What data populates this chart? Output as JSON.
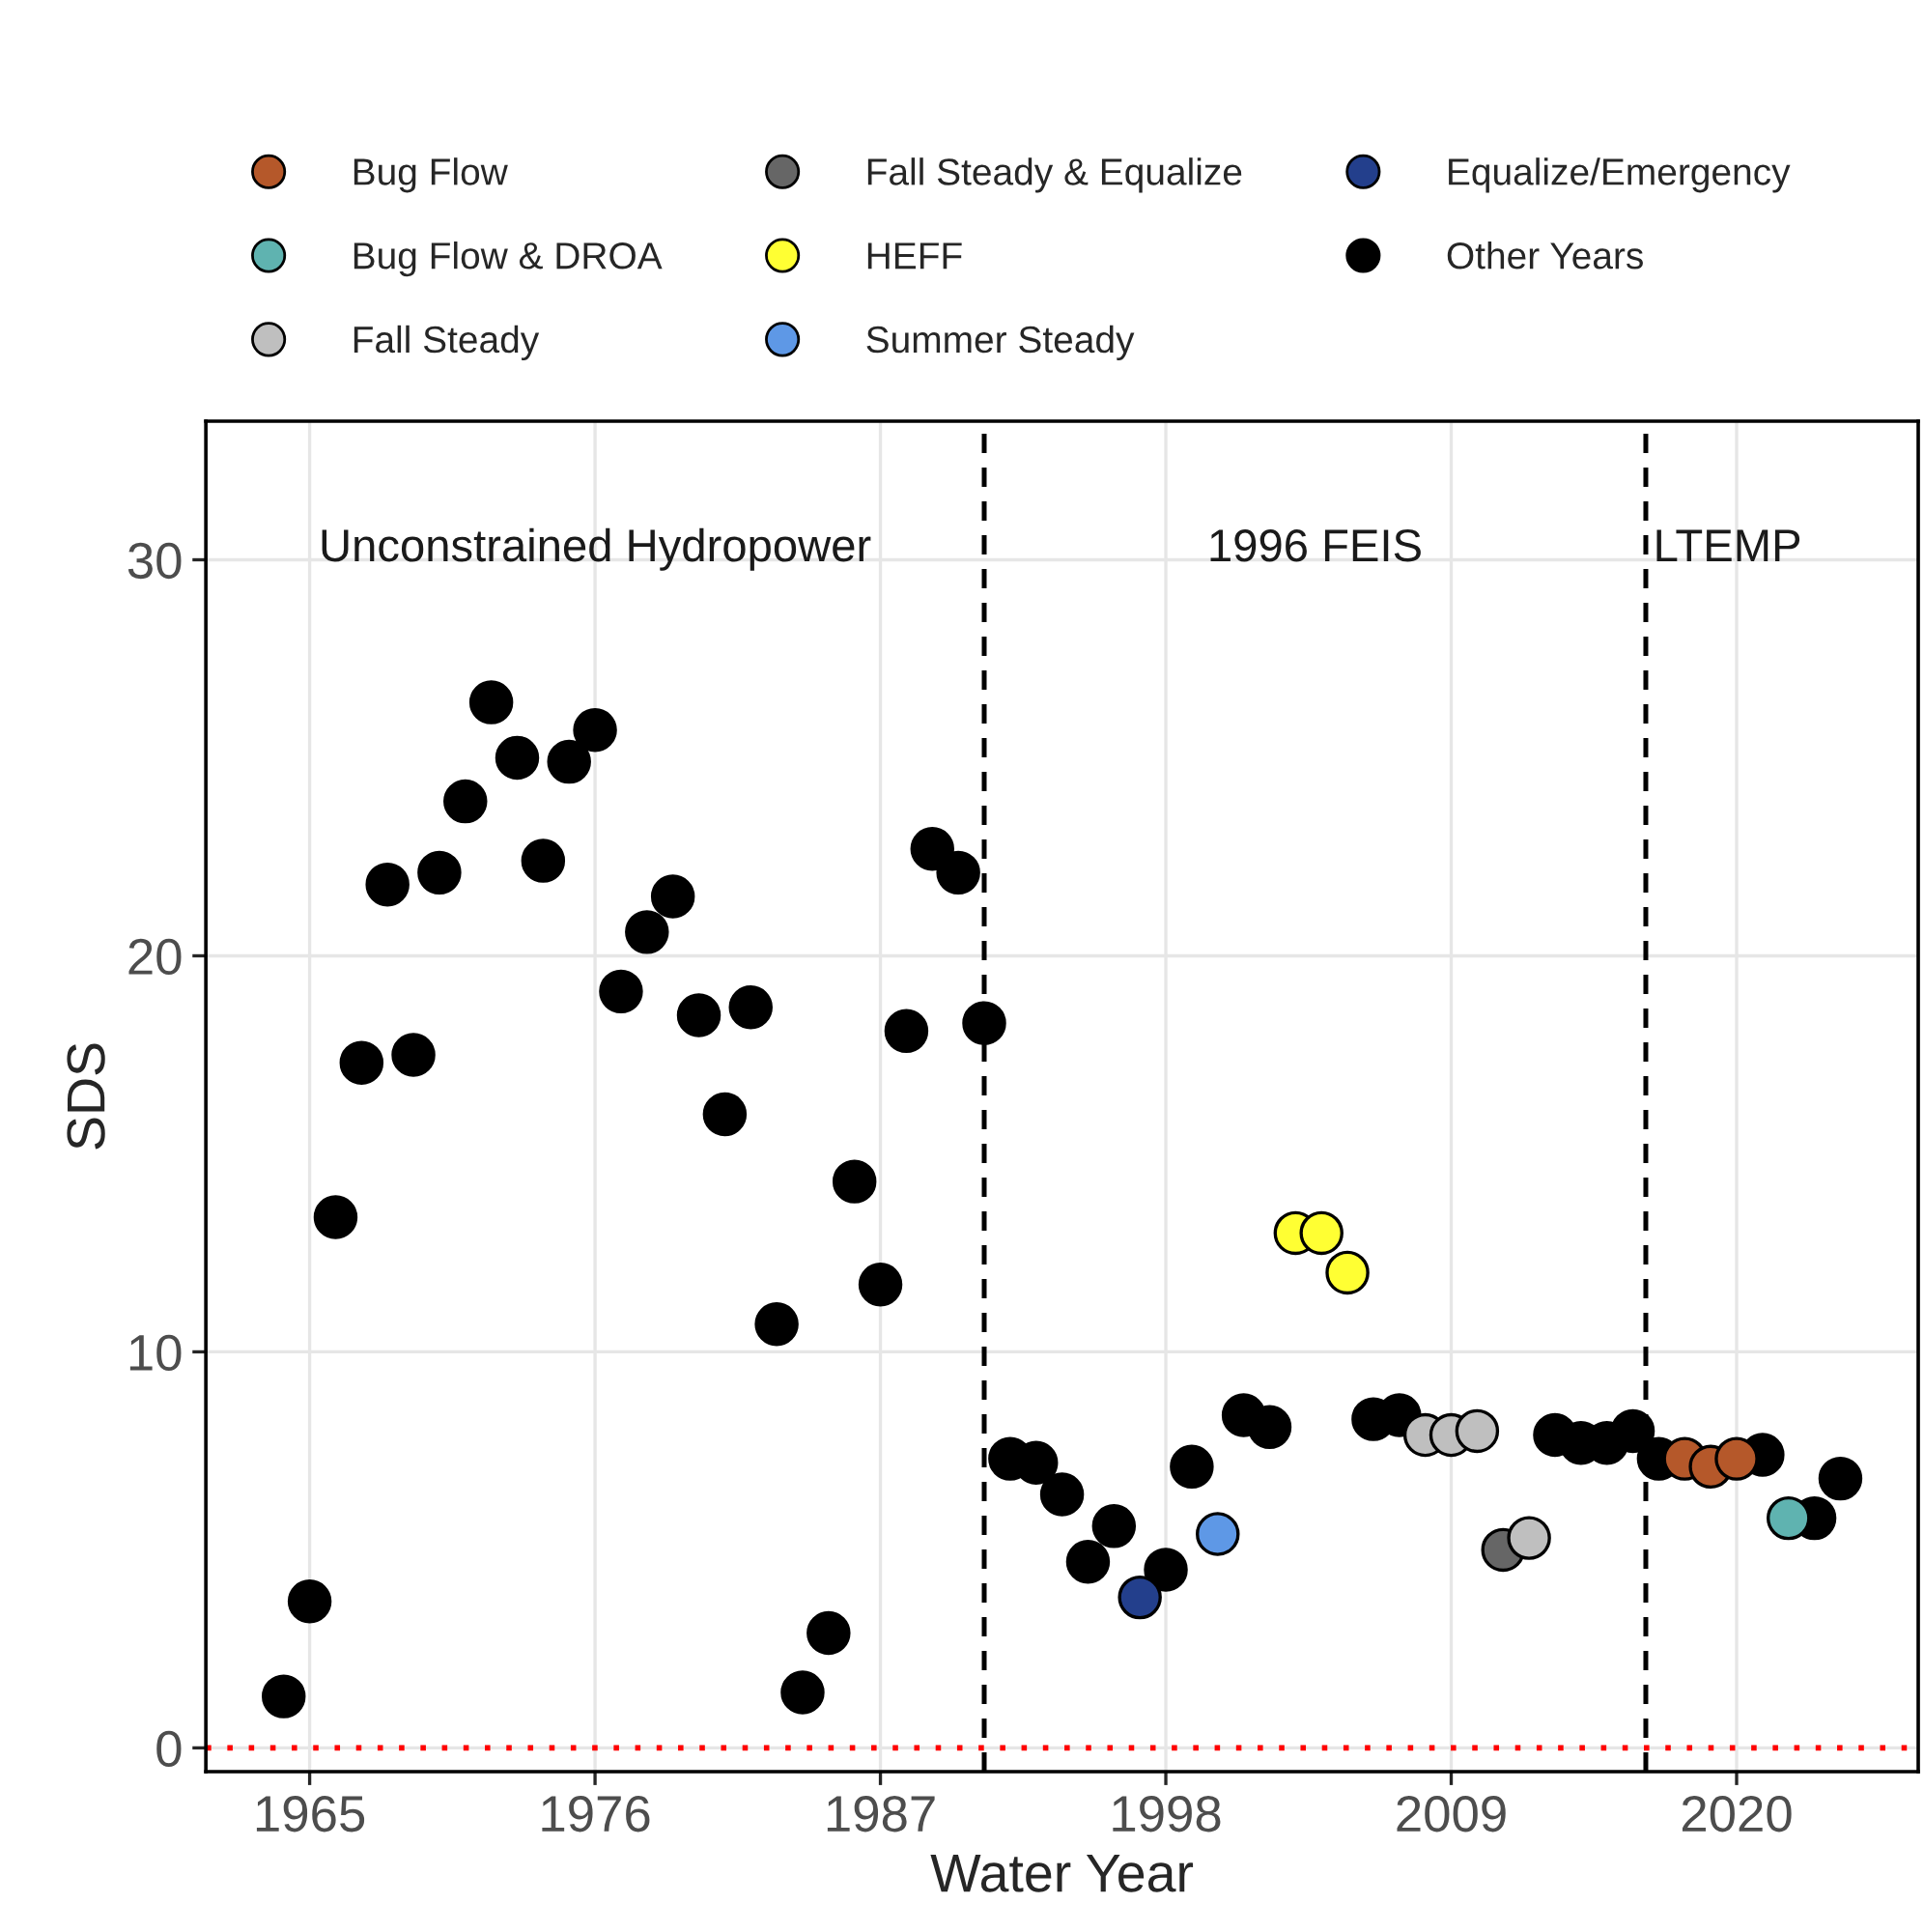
{
  "chart_data": {
    "type": "scatter",
    "xlabel": "Water Year",
    "ylabel": "SDS",
    "xlim": [
      1961,
      2027
    ],
    "xticks": [
      1965,
      1976,
      1987,
      1998,
      2009,
      2020
    ],
    "ylim": [
      -0.6,
      33.5
    ],
    "yticks": [
      0,
      10,
      20,
      30
    ],
    "grid": true,
    "legend": "top",
    "marker": "circle",
    "ref_lines": [
      {
        "axis": "x",
        "value": 1991,
        "color": "#000000",
        "line_style": "dashed"
      },
      {
        "axis": "x",
        "value": 2016.5,
        "color": "#000000",
        "line_style": "dashed"
      },
      {
        "axis": "y",
        "value": 0,
        "color": "#ff0000",
        "line_style": "dotted"
      }
    ],
    "annotations": [
      "Unconstrained Hydropower",
      "1996 FEIS",
      "LTEMP"
    ],
    "series": [
      {
        "name": "Bug Flow",
        "color": "#b5582a",
        "x": [
          2018,
          2019,
          2020
        ],
        "values": [
          7.3,
          7.1,
          7.3
        ]
      },
      {
        "name": "Bug Flow & DROA",
        "color": "#5fb3b0",
        "x": [
          2022
        ],
        "values": [
          5.8
        ]
      },
      {
        "name": "Fall Steady",
        "color": "#bfbfbf",
        "x": [
          2008,
          2009,
          2010,
          2012
        ],
        "values": [
          7.9,
          7.9,
          8.0,
          5.3
        ]
      },
      {
        "name": "Fall Steady & Equalize",
        "color": "#666666",
        "x": [
          2011
        ],
        "values": [
          5.0
        ]
      },
      {
        "name": "HEFF",
        "color": "#ffff33",
        "x": [
          2003,
          2004,
          2005
        ],
        "values": [
          13.0,
          13.0,
          12.0
        ]
      },
      {
        "name": "Summer Steady",
        "color": "#5e98e6",
        "x": [
          2000
        ],
        "values": [
          5.4
        ]
      },
      {
        "name": "Equalize/Emergency",
        "color": "#233f8c",
        "x": [
          1997
        ],
        "values": [
          3.8
        ]
      },
      {
        "name": "Other Years",
        "color": "#000000",
        "x": [
          1964,
          1965,
          1966,
          1967,
          1968,
          1969,
          1970,
          1971,
          1972,
          1973,
          1974,
          1975,
          1976,
          1977,
          1978,
          1979,
          1980,
          1981,
          1982,
          1983,
          1984,
          1985,
          1986,
          1987,
          1988,
          1989,
          1990,
          1991,
          1992,
          1993,
          1994,
          1995,
          1996,
          1998,
          1999,
          2001,
          2002,
          2006,
          2007,
          2013,
          2014,
          2015,
          2016,
          2017,
          2021,
          2023,
          2024
        ],
        "values": [
          1.3,
          3.7,
          13.4,
          17.3,
          21.8,
          17.5,
          22.1,
          23.9,
          26.4,
          25.0,
          22.4,
          24.9,
          25.7,
          19.1,
          20.6,
          21.5,
          18.5,
          16.0,
          18.7,
          10.7,
          1.4,
          2.9,
          14.3,
          11.7,
          18.1,
          22.7,
          22.1,
          18.3,
          7.3,
          7.2,
          6.4,
          4.7,
          5.6,
          4.5,
          7.1,
          8.4,
          8.1,
          8.3,
          8.4,
          7.9,
          7.7,
          7.7,
          8.0,
          7.3,
          7.4,
          5.8,
          6.8
        ]
      }
    ]
  }
}
